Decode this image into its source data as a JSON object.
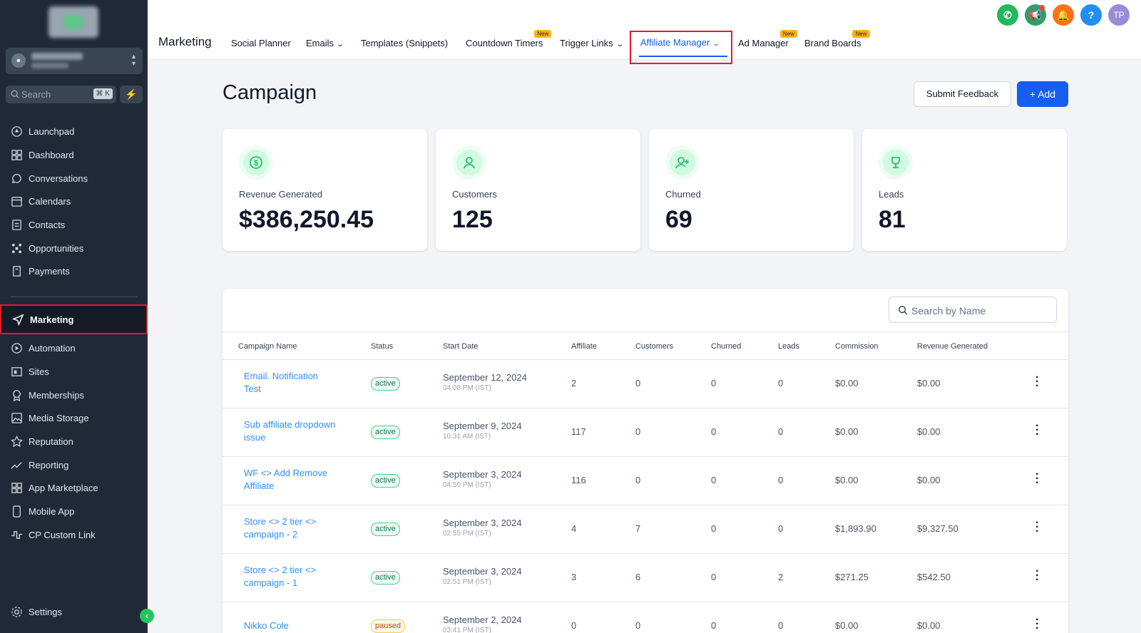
{
  "sidebar": {
    "search_label": "Search",
    "search_shortcut": "⌘ K",
    "items": [
      {
        "label": "Launchpad",
        "icon": "rocket-icon"
      },
      {
        "label": "Dashboard",
        "icon": "grid-icon"
      },
      {
        "label": "Conversations",
        "icon": "chat-icon"
      },
      {
        "label": "Calendars",
        "icon": "calendar-icon"
      },
      {
        "label": "Contacts",
        "icon": "contacts-icon"
      },
      {
        "label": "Opportunities",
        "icon": "funnel-icon"
      },
      {
        "label": "Payments",
        "icon": "receipt-icon"
      },
      {
        "label": "Marketing",
        "icon": "send-icon"
      },
      {
        "label": "Automation",
        "icon": "automation-icon"
      },
      {
        "label": "Sites",
        "icon": "sites-icon"
      },
      {
        "label": "Memberships",
        "icon": "award-icon"
      },
      {
        "label": "Media Storage",
        "icon": "image-icon"
      },
      {
        "label": "Reputation",
        "icon": "star-icon"
      },
      {
        "label": "Reporting",
        "icon": "trend-icon"
      },
      {
        "label": "App Marketplace",
        "icon": "apps-icon"
      },
      {
        "label": "Mobile App",
        "icon": "mobile-icon"
      },
      {
        "label": "CP Custom Link",
        "icon": "link-icon"
      }
    ],
    "settings_label": "Settings"
  },
  "topbar": {
    "section_title": "Marketing",
    "tabs": [
      {
        "label": "Social Planner"
      },
      {
        "label": "Emails"
      },
      {
        "label": "Templates (Snippets)"
      },
      {
        "label": "Countdown Timers",
        "badge": "New"
      },
      {
        "label": "Trigger Links"
      },
      {
        "label": "Affiliate Manager"
      },
      {
        "label": "Ad Manager",
        "badge": "New"
      },
      {
        "label": "Brand Boards",
        "badge": "New"
      }
    ],
    "avatar_initials": "TP"
  },
  "page": {
    "title": "Campaign",
    "feedback_button": "Submit Feedback",
    "add_button": "Add",
    "search_placeholder": "Search by Name"
  },
  "stats": [
    {
      "label": "Revenue Generated",
      "value": "$386,250.45"
    },
    {
      "label": "Customers",
      "value": "125"
    },
    {
      "label": "Churned",
      "value": "69"
    },
    {
      "label": "Leads",
      "value": "81"
    }
  ],
  "table": {
    "headers": [
      "Campaign Name",
      "Status",
      "Start Date",
      "Affiliate",
      "Customers",
      "Churned",
      "Leads",
      "Commission",
      "Revenue Generated"
    ],
    "rows": [
      {
        "name": "Email. Notification Test",
        "status": "active",
        "date": "September 12, 2024",
        "time": "04:08 PM (IST)",
        "affiliate": "2",
        "customers": "0",
        "churned": "0",
        "leads": "0",
        "commission": "$0.00",
        "revenue": "$0.00"
      },
      {
        "name": "Sub affiliate dropdown issue",
        "status": "active",
        "date": "September 9, 2024",
        "time": "10:31 AM (IST)",
        "affiliate": "117",
        "customers": "0",
        "churned": "0",
        "leads": "0",
        "commission": "$0.00",
        "revenue": "$0.00"
      },
      {
        "name": "WF <> Add Remove Affiliate",
        "status": "active",
        "date": "September 3, 2024",
        "time": "04:50 PM (IST)",
        "affiliate": "116",
        "customers": "0",
        "churned": "0",
        "leads": "0",
        "commission": "$0.00",
        "revenue": "$0.00"
      },
      {
        "name": "Store <> 2 tier <> campaign - 2",
        "status": "active",
        "date": "September 3, 2024",
        "time": "02:55 PM (IST)",
        "affiliate": "4",
        "customers": "7",
        "churned": "0",
        "leads": "0",
        "commission": "$1,893.90",
        "revenue": "$9,327.50"
      },
      {
        "name": "Store <> 2 tier <> campaign - 1",
        "status": "active",
        "date": "September 3, 2024",
        "time": "02:51 PM (IST)",
        "affiliate": "3",
        "customers": "6",
        "churned": "0",
        "leads": "2",
        "commission": "$271.25",
        "revenue": "$542.50"
      },
      {
        "name": "Nikko Cole",
        "status": "paused",
        "date": "September 2, 2024",
        "time": "03:41 PM (IST)",
        "affiliate": "0",
        "customers": "0",
        "churned": "0",
        "leads": "0",
        "commission": "$0.00",
        "revenue": "$0.00"
      }
    ]
  }
}
